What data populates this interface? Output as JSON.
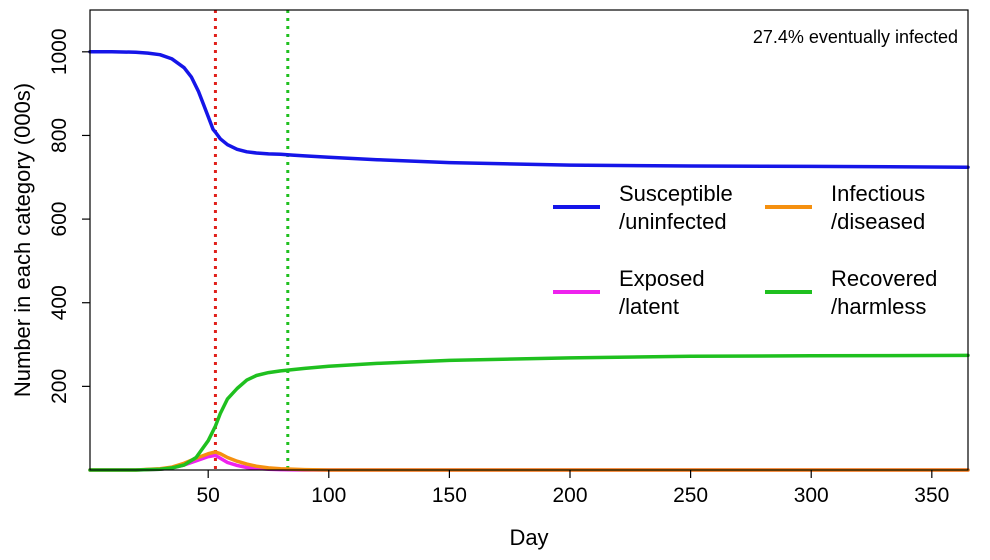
{
  "chart_data": {
    "type": "line",
    "xlabel": "Day",
    "ylabel": "Number in each category (000s)",
    "xlim": [
      1,
      365
    ],
    "ylim": [
      0,
      1100
    ],
    "x_ticks": [
      50,
      100,
      150,
      200,
      250,
      300,
      350
    ],
    "y_ticks": [
      200,
      400,
      600,
      800,
      1000
    ],
    "annotation": "27.4% eventually infected",
    "vlines": [
      {
        "x": 53,
        "color": "#e0201b"
      },
      {
        "x": 83,
        "color": "#1fc01f"
      }
    ],
    "legend": [
      {
        "series": "susceptible",
        "line1": "Susceptible",
        "line2": "/uninfected",
        "color": "#1515e8"
      },
      {
        "series": "infectious",
        "line1": "Infectious",
        "line2": "/diseased",
        "color": "#f5900f"
      },
      {
        "series": "exposed",
        "line1": "Exposed",
        "line2": "/latent",
        "color": "#ee22ee"
      },
      {
        "series": "recovered",
        "line1": "Recovered",
        "line2": "/harmless",
        "color": "#1fc01f"
      }
    ],
    "series": [
      {
        "key": "susceptible",
        "color": "#1515e8",
        "x": [
          1,
          10,
          20,
          25,
          30,
          35,
          40,
          43,
          46,
          48,
          50,
          52,
          53,
          55,
          58,
          62,
          66,
          70,
          75,
          80,
          85,
          90,
          100,
          120,
          150,
          200,
          250,
          300,
          365
        ],
        "y": [
          1000,
          1000,
          999,
          997,
          993,
          983,
          962,
          940,
          905,
          875,
          845,
          815,
          808,
          792,
          778,
          767,
          761,
          758,
          756,
          755,
          753,
          751,
          748,
          742,
          735,
          729,
          727,
          726,
          724
        ]
      },
      {
        "key": "exposed",
        "color": "#ee22ee",
        "x": [
          1,
          20,
          30,
          35,
          40,
          45,
          50,
          53,
          55,
          58,
          62,
          66,
          70,
          75,
          80,
          90,
          100,
          150,
          200,
          250,
          300,
          365
        ],
        "y": [
          0,
          0,
          2,
          5,
          12,
          22,
          32,
          35,
          28,
          18,
          11,
          6,
          4,
          2,
          1,
          0,
          0,
          0,
          0,
          0,
          0,
          0
        ]
      },
      {
        "key": "infectious",
        "color": "#f5900f",
        "x": [
          1,
          20,
          30,
          35,
          40,
          45,
          50,
          53,
          55,
          58,
          62,
          66,
          70,
          75,
          80,
          90,
          100,
          150,
          200,
          250,
          300,
          365
        ],
        "y": [
          0,
          0,
          3,
          7,
          16,
          28,
          39,
          43,
          39,
          30,
          21,
          14,
          9,
          5,
          3,
          1,
          0,
          0,
          0,
          0,
          0,
          0
        ]
      },
      {
        "key": "recovered",
        "color": "#1fc01f",
        "x": [
          1,
          20,
          30,
          35,
          40,
          45,
          50,
          53,
          55,
          58,
          62,
          66,
          70,
          75,
          80,
          85,
          90,
          100,
          120,
          150,
          200,
          250,
          300,
          365
        ],
        "y": [
          0,
          0,
          2,
          5,
          12,
          30,
          70,
          105,
          135,
          170,
          195,
          215,
          226,
          233,
          237,
          240,
          243,
          248,
          255,
          262,
          268,
          272,
          273,
          274
        ]
      }
    ]
  }
}
